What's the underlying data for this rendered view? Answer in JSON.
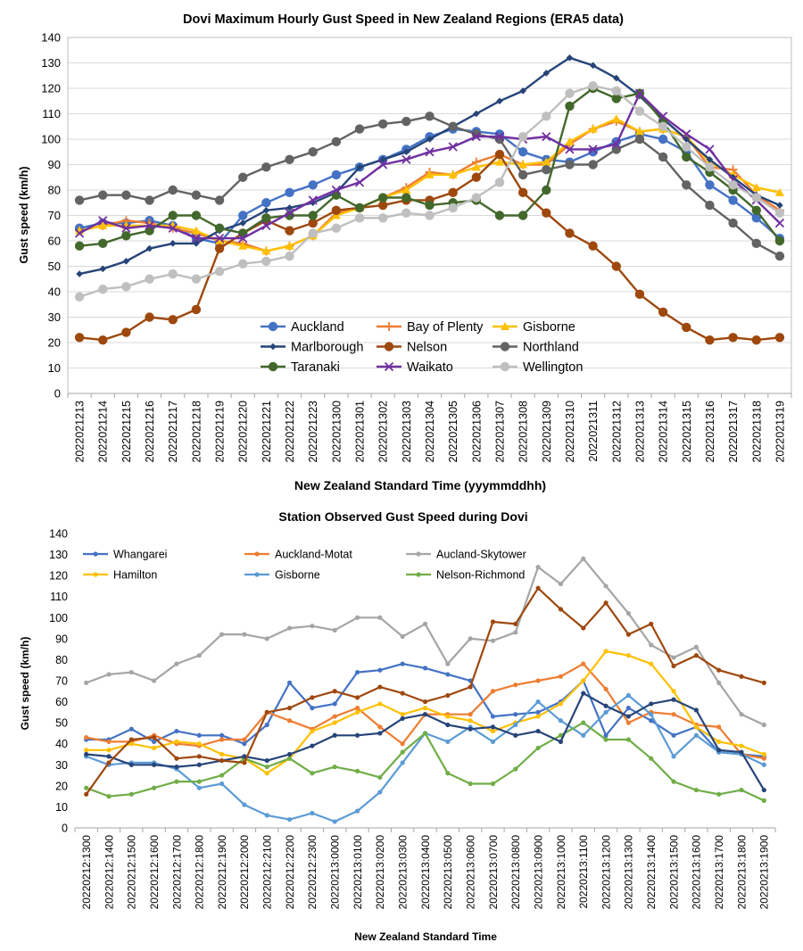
{
  "chart_data": [
    {
      "type": "line",
      "title": "Dovi Maximum Hourly Gust Speed in New Zealand Regions (ERA5 data)",
      "xlabel": "New Zealand Standard Time (yyymmddhh)",
      "ylabel": "Gust speed (km/h)",
      "ylim": [
        0,
        140
      ],
      "yticks": [
        0,
        10,
        20,
        30,
        40,
        50,
        60,
        70,
        80,
        90,
        100,
        110,
        120,
        130,
        140
      ],
      "grid": true,
      "legend_position": "bottom-center",
      "categories": [
        "2022021213",
        "2022021214",
        "2022021215",
        "2022021216",
        "2022021217",
        "2022021218",
        "2022021219",
        "2022021220",
        "2022021221",
        "2022021222",
        "2022021223",
        "2022021300",
        "2022021301",
        "2022021302",
        "2022021303",
        "2022021304",
        "2022021305",
        "2022021306",
        "2022021307",
        "2022021308",
        "2022021309",
        "2022021310",
        "2022021311",
        "2022021312",
        "2022021313",
        "2022021314",
        "2022021315",
        "2022021316",
        "2022021317",
        "2022021318",
        "2022021319"
      ],
      "series": [
        {
          "name": "Auckland",
          "color": "#4472C4",
          "marker": "circle",
          "values": [
            65,
            67,
            67,
            68,
            66,
            61,
            59,
            70,
            75,
            79,
            82,
            86,
            89,
            92,
            96,
            101,
            104,
            103,
            102,
            95,
            92,
            91,
            95,
            99,
            102,
            100,
            95,
            82,
            76,
            69,
            61
          ]
        },
        {
          "name": "Bay of Plenty",
          "color": "#ED7D31",
          "marker": "plus",
          "values": [
            64,
            66,
            68,
            67,
            65,
            63,
            60,
            59,
            56,
            58,
            62,
            71,
            73,
            77,
            81,
            87,
            86,
            91,
            94,
            90,
            90,
            98,
            104,
            107,
            103,
            104,
            101,
            89,
            88,
            78,
            72
          ]
        },
        {
          "name": "Gisborne",
          "color": "#FFC000",
          "marker": "triangle",
          "values": [
            64,
            66,
            66,
            66,
            66,
            64,
            60,
            58,
            56,
            58,
            62,
            70,
            73,
            77,
            80,
            86,
            86,
            89,
            91,
            90,
            91,
            99,
            104,
            108,
            103,
            104,
            101,
            91,
            86,
            81,
            79
          ]
        },
        {
          "name": "Marlborough",
          "color": "#264478",
          "marker": "diamond",
          "values": [
            47,
            49,
            52,
            57,
            59,
            59,
            64,
            67,
            72,
            73,
            75,
            79,
            89,
            92,
            95,
            100,
            105,
            110,
            115,
            119,
            126,
            132,
            129,
            124,
            117,
            108,
            100,
            92,
            85,
            78,
            74
          ]
        },
        {
          "name": "Nelson",
          "color": "#9E480E",
          "marker": "circle",
          "values": [
            22,
            21,
            24,
            30,
            29,
            33,
            57,
            63,
            68,
            64,
            67,
            72,
            73,
            74,
            76,
            76,
            79,
            85,
            94,
            79,
            71,
            63,
            58,
            50,
            39,
            32,
            26,
            21,
            22,
            21,
            22
          ]
        },
        {
          "name": "Northland",
          "color": "#636363",
          "marker": "circle",
          "values": [
            76,
            78,
            78,
            76,
            80,
            78,
            76,
            85,
            89,
            92,
            95,
            99,
            104,
            106,
            107,
            109,
            105,
            102,
            100,
            86,
            88,
            90,
            90,
            96,
            100,
            93,
            82,
            74,
            67,
            59,
            54
          ]
        },
        {
          "name": "Taranaki",
          "color": "#43682B",
          "marker": "circle",
          "values": [
            58,
            59,
            62,
            64,
            70,
            70,
            65,
            63,
            69,
            70,
            70,
            78,
            73,
            77,
            77,
            74,
            75,
            76,
            70,
            70,
            80,
            113,
            120,
            116,
            118,
            107,
            93,
            87,
            80,
            72,
            60
          ]
        },
        {
          "name": "Waikato",
          "color": "#7030A0",
          "marker": "x",
          "values": [
            63,
            68,
            65,
            66,
            65,
            61,
            61,
            61,
            66,
            71,
            76,
            80,
            83,
            90,
            92,
            95,
            97,
            101,
            101,
            100,
            101,
            96,
            96,
            98,
            118,
            109,
            102,
            96,
            84,
            76,
            67
          ]
        },
        {
          "name": "Wellington",
          "color": "#BFBFBF",
          "marker": "circle",
          "values": [
            38,
            41,
            42,
            45,
            47,
            45,
            48,
            51,
            52,
            54,
            63,
            65,
            69,
            69,
            71,
            70,
            73,
            77,
            83,
            101,
            109,
            118,
            121,
            119,
            111,
            105,
            97,
            89,
            82,
            77,
            71
          ]
        }
      ]
    },
    {
      "type": "line",
      "title": "Station Observed Gust Speed during Dovi",
      "xlabel": "New Zealand Standard Time",
      "ylabel": "Gust speed (km/h)",
      "ylim": [
        0,
        140
      ],
      "yticks": [
        0,
        10,
        20,
        30,
        40,
        50,
        60,
        70,
        80,
        90,
        100,
        110,
        120,
        130,
        140
      ],
      "grid": false,
      "legend_position": "top",
      "categories": [
        "20220212:1300",
        "20220212:1400",
        "20220212:1500",
        "20220212:1600",
        "20220212:1700",
        "20220212:1800",
        "20220212:1900",
        "20220212:2000",
        "20220212:2100",
        "20220212:2200",
        "20220212:2300",
        "20220213:0000",
        "20220213:0100",
        "20220213:0200",
        "20220213:0300",
        "20220213:0400",
        "20220213:0500",
        "20220213:0600",
        "20220213:0700",
        "20220213:0800",
        "20220213:0900",
        "20220213:1000",
        "20220213:1100",
        "20220213:1200",
        "20220213:1300",
        "20220213:1400",
        "20220213:1500",
        "20220213:1600",
        "20220213:1700",
        "20220213:1800",
        "20220213:1900"
      ],
      "series": [
        {
          "name": "Whangarei",
          "color": "#4472C4",
          "values": [
            42,
            42,
            47,
            41,
            46,
            44,
            44,
            40,
            49,
            69,
            57,
            59,
            74,
            75,
            78,
            76,
            73,
            70,
            53,
            54,
            55,
            60,
            70,
            44,
            57,
            51,
            44,
            48,
            36,
            35,
            34
          ]
        },
        {
          "name": "Auckland-Motat",
          "color": "#ED7D31",
          "values": [
            43,
            41,
            41,
            44,
            40,
            39,
            42,
            42,
            55,
            51,
            47,
            53,
            57,
            48,
            40,
            54,
            54,
            54,
            65,
            68,
            70,
            72,
            78,
            66,
            50,
            55,
            54,
            49,
            48,
            35,
            33
          ]
        },
        {
          "name": "Aucland-Skytower",
          "color": "#A5A5A5",
          "values": [
            69,
            73,
            74,
            70,
            78,
            82,
            92,
            92,
            90,
            95,
            96,
            94,
            100,
            100,
            91,
            97,
            78,
            90,
            89,
            93,
            124,
            116,
            128,
            115,
            102,
            87,
            81,
            86,
            69,
            54,
            49
          ]
        },
        {
          "name": "Hamilton",
          "color": "#FFC000",
          "values": [
            37,
            37,
            40,
            38,
            41,
            40,
            35,
            33,
            26,
            33,
            46,
            50,
            55,
            59,
            54,
            57,
            53,
            51,
            46,
            50,
            53,
            59,
            70,
            84,
            82,
            78,
            65,
            48,
            41,
            39,
            35
          ]
        },
        {
          "name": "Gisborne",
          "color": "#5B9BD5",
          "values": [
            34,
            30,
            31,
            31,
            28,
            19,
            21,
            11,
            6,
            4,
            7,
            3,
            8,
            17,
            31,
            45,
            41,
            48,
            41,
            49,
            60,
            51,
            44,
            55,
            63,
            54,
            34,
            44,
            36,
            35,
            30
          ]
        },
        {
          "name": "Nelson-Richmond",
          "color": "#70AD47",
          "values": [
            19,
            15,
            16,
            19,
            22,
            22,
            25,
            33,
            29,
            33,
            26,
            29,
            27,
            24,
            36,
            45,
            26,
            21,
            21,
            28,
            38,
            44,
            50,
            42,
            42,
            33,
            22,
            18,
            16,
            18,
            13
          ]
        },
        {
          "name": "",
          "color": "#264478",
          "values": [
            35,
            34,
            30,
            30,
            29,
            30,
            32,
            34,
            32,
            35,
            39,
            44,
            44,
            45,
            52,
            54,
            49,
            47,
            48,
            44,
            46,
            41,
            64,
            58,
            53,
            59,
            61,
            56,
            37,
            36,
            18
          ]
        },
        {
          "name": "",
          "color": "#9E480E",
          "values": [
            16,
            31,
            42,
            43,
            33,
            34,
            32,
            31,
            55,
            57,
            62,
            65,
            62,
            67,
            64,
            60,
            63,
            67,
            98,
            97,
            114,
            104,
            95,
            107,
            92,
            97,
            77,
            82,
            75,
            72,
            69
          ]
        }
      ]
    }
  ]
}
